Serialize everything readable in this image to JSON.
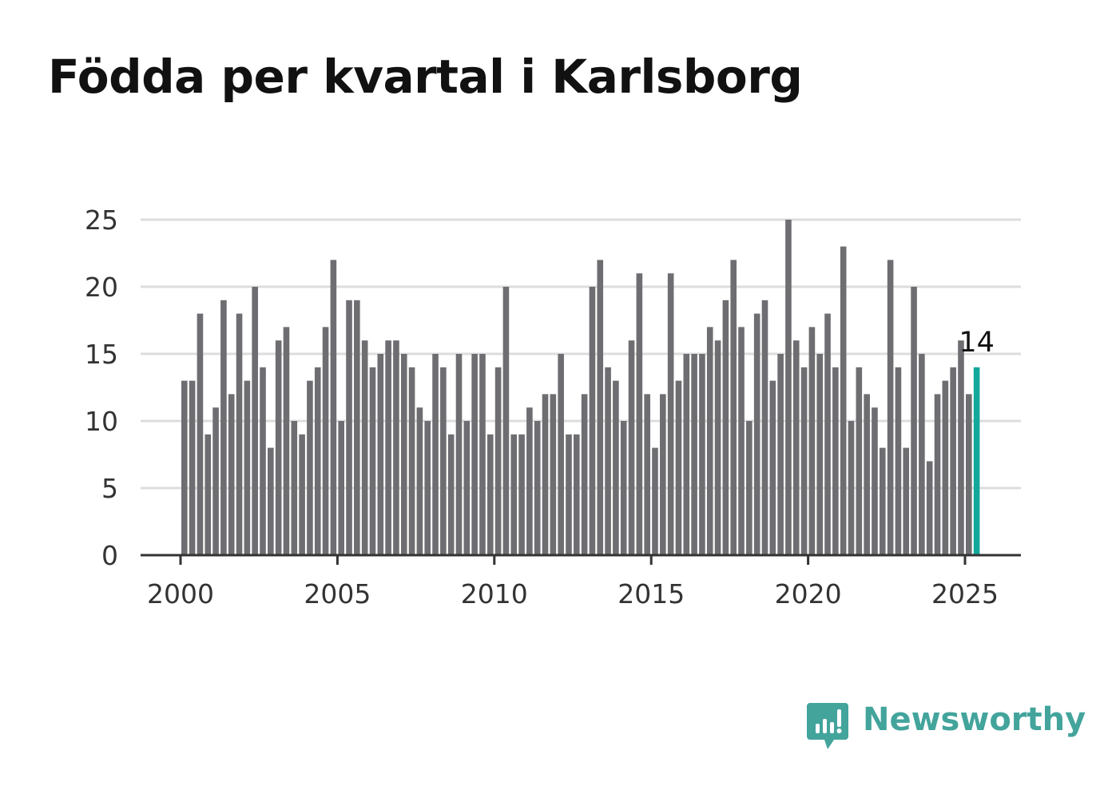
{
  "title": "Födda per kvartal i Karlsborg",
  "brand": {
    "name": "Newsworthy",
    "color": "#43a49c"
  },
  "colors": {
    "bar": "#6e6e72",
    "highlight": "#12a89a",
    "grid": "#dddddd",
    "axis": "#333333"
  },
  "chart_data": {
    "type": "bar",
    "xlabel": "",
    "ylabel": "",
    "ylim": [
      0,
      25
    ],
    "yticks": [
      0,
      5,
      10,
      15,
      20,
      25
    ],
    "xticks": [
      "2000",
      "2005",
      "2010",
      "2015",
      "2020",
      "2025"
    ],
    "grid": true,
    "start": "2000 Q1",
    "end": "2025 Q2",
    "highlight": {
      "period": "2025 Q2",
      "value": 14,
      "label": "14"
    },
    "values": [
      13,
      13,
      18,
      9,
      11,
      19,
      12,
      18,
      13,
      20,
      14,
      8,
      16,
      17,
      10,
      9,
      13,
      14,
      17,
      22,
      10,
      19,
      19,
      16,
      14,
      15,
      16,
      16,
      15,
      14,
      11,
      10,
      15,
      14,
      9,
      15,
      10,
      15,
      15,
      9,
      14,
      20,
      9,
      9,
      11,
      10,
      12,
      12,
      15,
      9,
      9,
      12,
      20,
      22,
      14,
      13,
      10,
      16,
      21,
      12,
      8,
      12,
      21,
      13,
      15,
      15,
      15,
      17,
      16,
      19,
      22,
      17,
      10,
      18,
      19,
      13,
      15,
      25,
      16,
      14,
      17,
      15,
      18,
      14,
      23,
      10,
      14,
      12,
      11,
      8,
      22,
      14,
      8,
      20,
      15,
      7,
      12,
      13,
      14,
      16,
      12,
      14
    ]
  }
}
